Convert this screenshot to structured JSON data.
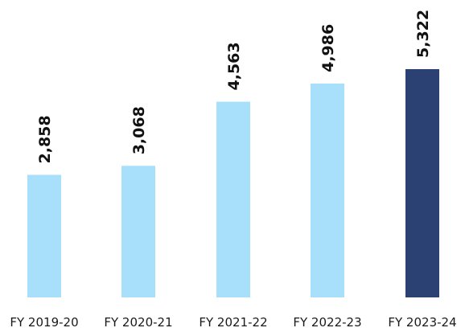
{
  "chart_data": {
    "type": "bar",
    "categories": [
      "FY 2019-20",
      "FY 2020-21",
      "FY 2021-22",
      "FY 2022-23",
      "FY 2023-24"
    ],
    "values": [
      2858,
      3068,
      4563,
      4986,
      5322
    ],
    "value_labels": [
      "2,858",
      "3,068",
      "4,563",
      "4,986",
      "5,322"
    ],
    "title": "",
    "xlabel": "",
    "ylabel": "",
    "ylim": [
      0,
      5322
    ],
    "grid": false,
    "colors": {
      "default": "#a8e0fb",
      "highlight": "#2b4174"
    },
    "highlight_index": 4
  }
}
